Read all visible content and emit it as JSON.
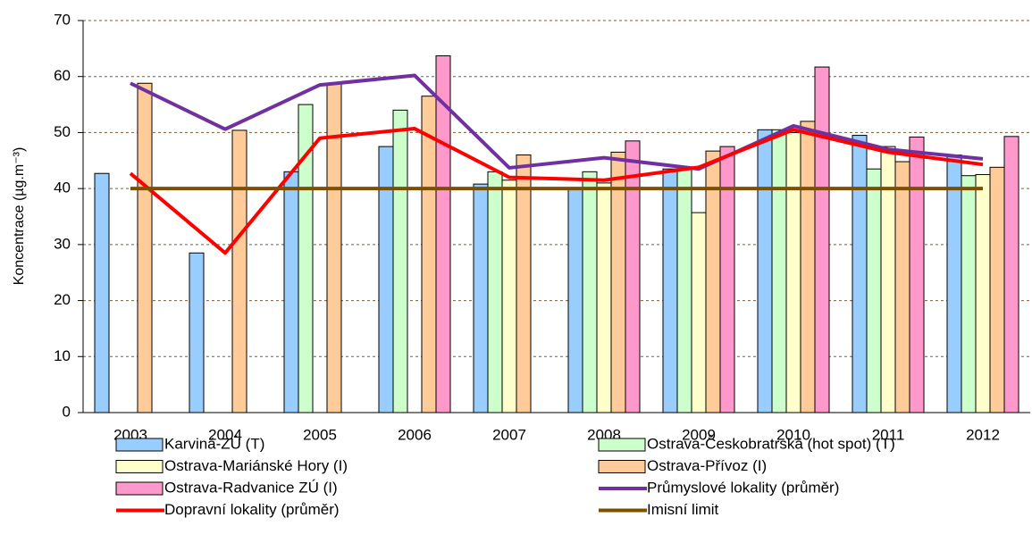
{
  "chart_data": {
    "type": "bar",
    "y_label": "Koncentrace (µg.m⁻³)",
    "categories": [
      "2003",
      "2004",
      "2005",
      "2006",
      "2007",
      "2008",
      "2009",
      "2010",
      "2011",
      "2012"
    ],
    "series": [
      {
        "name": "Karviná-ZÚ (T)",
        "color": "#99ccff",
        "values": [
          42.7,
          28.5,
          43,
          47.5,
          40.8,
          40,
          43.5,
          50.5,
          49.5,
          46
        ]
      },
      {
        "name": "Ostrava-Českobratrská (hot spot) (T)",
        "color": "#ccffcc",
        "values": [
          null,
          null,
          55,
          54,
          43,
          43,
          43.5,
          50.5,
          43.5,
          42.3
        ]
      },
      {
        "name": "Ostrava-Mariánské Hory (I)",
        "color": "#ffffcc",
        "values": [
          null,
          null,
          null,
          null,
          41.5,
          41,
          35.7,
          50,
          47.5,
          42.5
        ]
      },
      {
        "name": "Ostrava-Přívoz (I)",
        "color": "#ffcc99",
        "values": [
          58.8,
          50.4,
          58.8,
          56.5,
          46,
          46.5,
          46.7,
          52,
          44.8,
          43.8
        ]
      },
      {
        "name": "Ostrava-Radvanice ZÚ (I)",
        "color": "#ff99cc",
        "values": [
          null,
          null,
          null,
          63.7,
          null,
          48.5,
          47.5,
          61.7,
          49.2,
          49.3
        ]
      },
      {
        "name": "Průmyslové lokality (průměr)",
        "color": "#7030a0",
        "type": "line",
        "values": [
          58.8,
          50.6,
          58.5,
          60.2,
          43.7,
          45.5,
          43.5,
          51.2,
          47,
          45.3
        ]
      },
      {
        "name": "Dopravní lokality (průměr)",
        "color": "#ff0000",
        "type": "line",
        "values": [
          42.7,
          28.5,
          49,
          50.7,
          42,
          41.5,
          43.8,
          50.5,
          46.5,
          44.3
        ]
      },
      {
        "name": "Imisní limit",
        "color": "#7f4f00",
        "type": "line",
        "values": [
          40,
          40,
          40,
          40,
          40,
          40,
          40,
          40,
          40,
          40
        ]
      }
    ],
    "ylim": [
      0,
      70
    ],
    "yticks": [
      0,
      10,
      20,
      30,
      40,
      50,
      60,
      70
    ],
    "grid": true
  }
}
